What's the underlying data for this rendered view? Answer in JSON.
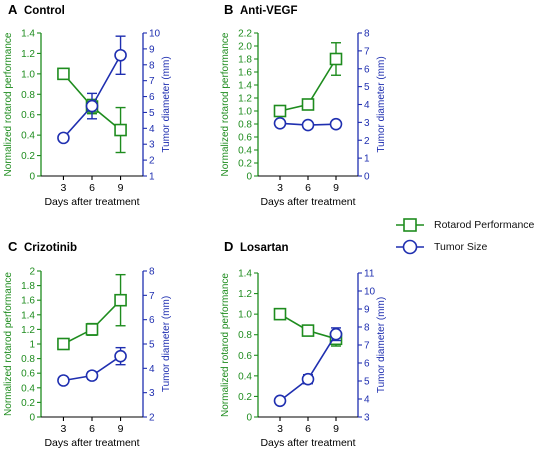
{
  "colors": {
    "rotarod": "#1e8c1e",
    "tumor": "#1f2fb0"
  },
  "legend": {
    "rotarod_label": "Rotarod Performance",
    "tumor_label": "Tumor Size",
    "placement": "right-middle"
  },
  "chart_data": [
    {
      "type": "line",
      "panel": "A",
      "title": "Control",
      "xlabel": "Days after treatment",
      "x": [
        3,
        6,
        9
      ],
      "xticks": [
        "3",
        "6",
        "9"
      ],
      "y_left": {
        "label": "Normalized rotarod performance",
        "ylim": [
          0,
          1.4
        ],
        "ticks": [
          "0",
          "0.2",
          "0.4",
          "0.6",
          "0.8",
          "1.0",
          "1.2",
          "1.4"
        ]
      },
      "y_right": {
        "label": "Tumor diameter (mm)",
        "ylim": [
          1,
          10
        ],
        "ticks": [
          "1",
          "2",
          "3",
          "4",
          "5",
          "6",
          "7",
          "8",
          "9",
          "10"
        ]
      },
      "series": [
        {
          "name": "Rotarod Performance",
          "axis": "left",
          "marker": "square",
          "values": [
            1.0,
            0.68,
            0.45
          ],
          "errors": [
            0,
            0.07,
            0.22
          ]
        },
        {
          "name": "Tumor Size",
          "axis": "right",
          "marker": "circle",
          "values": [
            3.4,
            5.4,
            8.6
          ],
          "errors": [
            0,
            0.8,
            1.2
          ]
        }
      ]
    },
    {
      "type": "line",
      "panel": "B",
      "title": "Anti-VEGF",
      "xlabel": "Days after treatment",
      "x": [
        3,
        6,
        9
      ],
      "xticks": [
        "3",
        "6",
        "9"
      ],
      "y_left": {
        "label": "Normalized rotarod performance",
        "ylim": [
          0,
          2.2
        ],
        "ticks": [
          "0",
          "0.2",
          "0.4",
          "0.6",
          "0.8",
          "1.0",
          "1.2",
          "1.4",
          "1.6",
          "1.8",
          "2.0",
          "2.2"
        ]
      },
      "y_right": {
        "label": "Tumor diameter (mm)",
        "ylim": [
          0,
          8
        ],
        "ticks": [
          "0",
          "1",
          "2",
          "3",
          "4",
          "5",
          "6",
          "7",
          "8"
        ]
      },
      "series": [
        {
          "name": "Rotarod Performance",
          "axis": "left",
          "marker": "square",
          "values": [
            1.0,
            1.1,
            1.8
          ],
          "errors": [
            0,
            0.04,
            0.25
          ]
        },
        {
          "name": "Tumor Size",
          "axis": "right",
          "marker": "circle",
          "values": [
            2.95,
            2.85,
            2.9
          ],
          "errors": [
            0,
            0,
            0
          ]
        }
      ]
    },
    {
      "type": "line",
      "panel": "C",
      "title": "Crizotinib",
      "xlabel": "Days after treatment",
      "x": [
        3,
        6,
        9
      ],
      "xticks": [
        "3",
        "6",
        "9"
      ],
      "y_left": {
        "label": "Normalized rotarod performance",
        "ylim": [
          0,
          2
        ],
        "ticks": [
          "0",
          "0.2",
          "0.4",
          "0.6",
          "0.8",
          "1",
          "1.2",
          "1.4",
          "1.6",
          "1.8",
          "2"
        ]
      },
      "y_right": {
        "label": "Tumor diameter (mm)",
        "ylim": [
          2,
          8
        ],
        "ticks": [
          "2",
          "3",
          "4",
          "5",
          "6",
          "7",
          "8"
        ]
      },
      "series": [
        {
          "name": "Rotarod Performance",
          "axis": "left",
          "marker": "square",
          "values": [
            1.0,
            1.2,
            1.6
          ],
          "errors": [
            0,
            0.08,
            0.35
          ]
        },
        {
          "name": "Tumor Size",
          "axis": "right",
          "marker": "circle",
          "values": [
            3.5,
            3.7,
            4.5
          ],
          "errors": [
            0,
            0.15,
            0.35
          ]
        }
      ]
    },
    {
      "type": "line",
      "panel": "D",
      "title": "Losartan",
      "xlabel": "Days after treatment",
      "x": [
        3,
        6,
        9
      ],
      "xticks": [
        "3",
        "6",
        "9"
      ],
      "y_left": {
        "label": "Normalized rotarod performance",
        "ylim": [
          0,
          1.4
        ],
        "ticks": [
          "0",
          "0.2",
          "0.4",
          "0.6",
          "0.8",
          "1.0",
          "1.2",
          "1.4"
        ]
      },
      "y_right": {
        "label": "Tumor diameter (mm)",
        "ylim": [
          3,
          11
        ],
        "ticks": [
          "3",
          "4",
          "5",
          "6",
          "7",
          "8",
          "9",
          "10",
          "11"
        ]
      },
      "series": [
        {
          "name": "Rotarod Performance",
          "axis": "left",
          "marker": "square",
          "values": [
            1.0,
            0.84,
            0.76
          ],
          "errors": [
            0,
            0.02,
            0.07
          ]
        },
        {
          "name": "Tumor Size",
          "axis": "right",
          "marker": "circle",
          "values": [
            3.9,
            5.1,
            7.6
          ],
          "errors": [
            0,
            0.25,
            0.35
          ]
        }
      ]
    }
  ]
}
